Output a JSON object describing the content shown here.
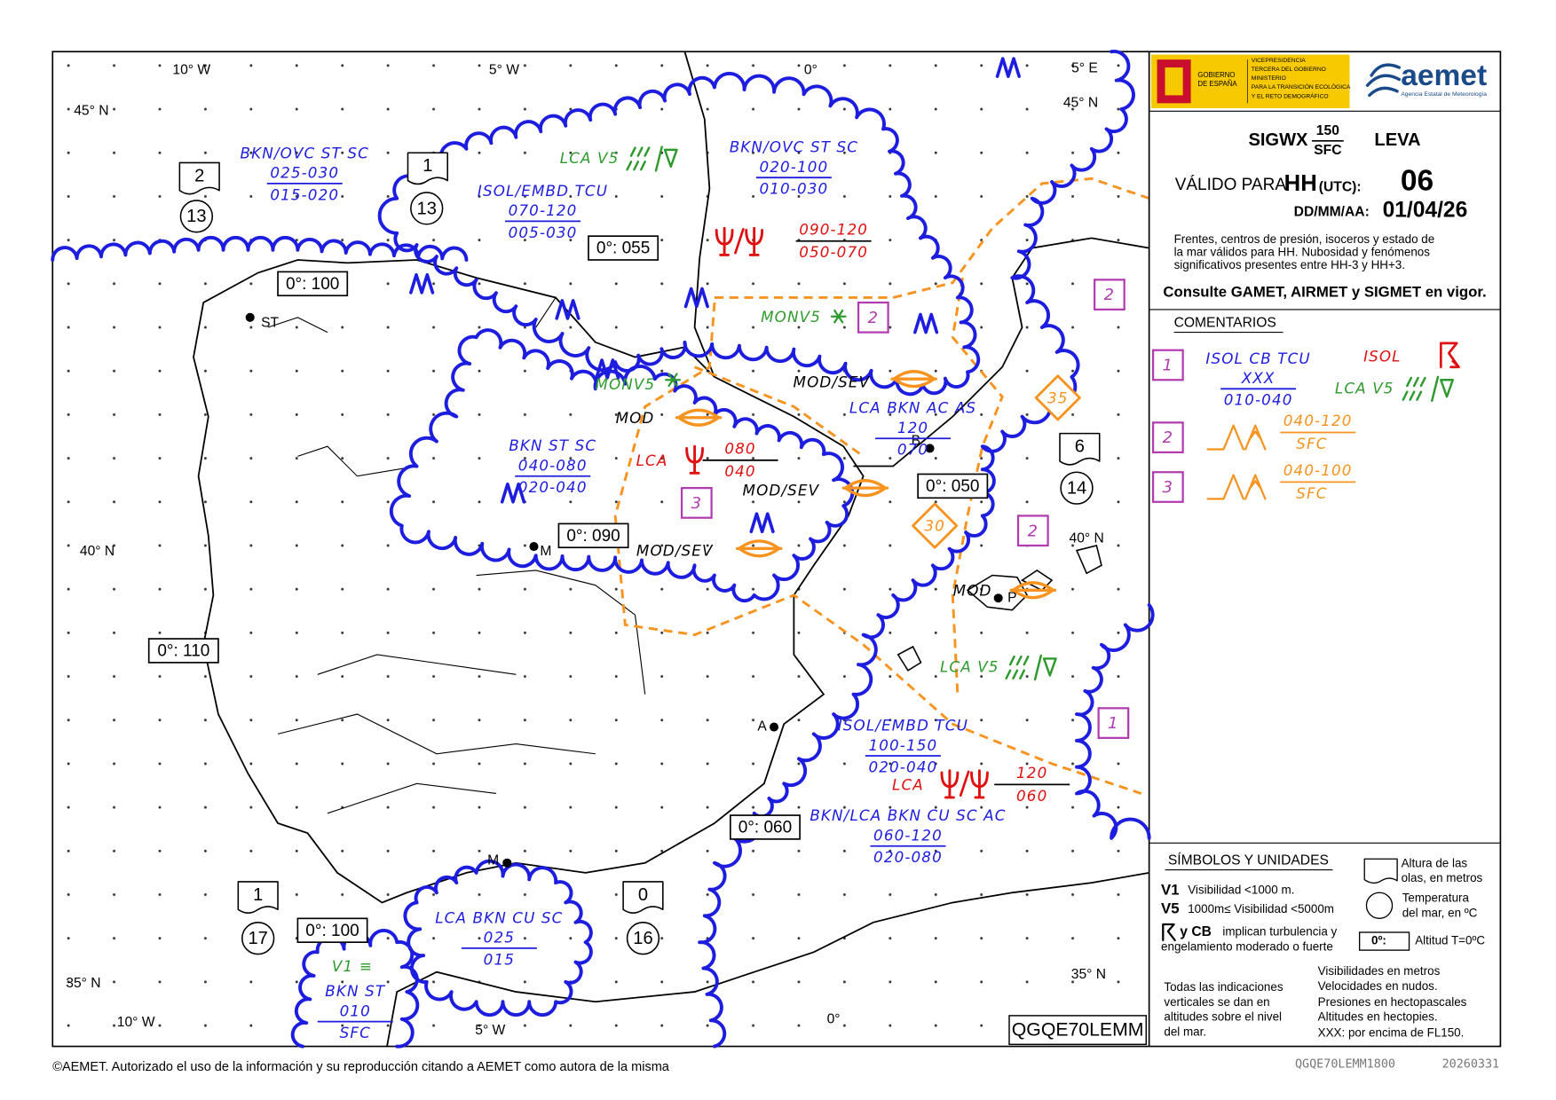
{
  "header": {
    "product": "SIGWX",
    "level_top": "150",
    "level_bottom": "SFC",
    "region": "LEVA",
    "valid_label": "VÁLIDO PARA",
    "hh": "HH",
    "utc": "(UTC):",
    "hh_value": "06",
    "date_label": "DD/MM/AA:",
    "date": "01/04/26",
    "description": [
      "Frentes, centros de presión, isoceros y estado de",
      "la mar válidos para HH. Nubosidad y fenómenos",
      "significativos presentes entre HH-3 y HH+3."
    ],
    "notice": "Consulte GAMET, AIRMET y SIGMET en vigor."
  },
  "logos": {
    "gov": [
      "GOBIERNO",
      "DE ESPAÑA"
    ],
    "ministry": [
      "VICEPRESIDENCIA",
      "TERCERA DEL GOBIERNO",
      "MINISTERIO",
      "PARA LA TRANSICIÓN ECOLÓGICA",
      "Y EL RETO DEMOGRÁFICO"
    ],
    "aemet": "aemet",
    "aemet_sub": "Agencia Estatal de Meteorología"
  },
  "map": {
    "coords": [
      "10° W",
      "5° W",
      "0°",
      "5° E",
      "45° N",
      "45° N",
      "40° N",
      "40° N",
      "35° N",
      "35° N",
      "10° W",
      "5° W",
      "0°"
    ],
    "cities": [
      "ST",
      "B",
      "M",
      "P",
      "A",
      "M"
    ],
    "cloud_groups": [
      {
        "lines": [
          "BKN/OVC ST SC",
          "025-030",
          "015-020"
        ]
      },
      {
        "lines": [
          "ISOL/EMBD TCU",
          "070-120",
          "005-030"
        ]
      },
      {
        "lines": [
          "BKN/OVC ST SC",
          "020-100",
          "010-030"
        ]
      },
      {
        "lines": [
          "BKN ST SC",
          "040-080",
          "020-040"
        ]
      },
      {
        "lines": [
          "LCA BKN AC AS",
          "120",
          "070"
        ]
      },
      {
        "lines": [
          "ISOL/EMBD TCU",
          "100-150",
          "020-040"
        ]
      },
      {
        "lines": [
          "BKN/LCA BKN CU SC AC",
          "060-120",
          "020-080"
        ]
      },
      {
        "lines": [
          "LCA BKN CU SC",
          "025",
          "015"
        ]
      },
      {
        "lines": [
          "BKN ST",
          "010",
          "SFC"
        ]
      }
    ],
    "red_groups": [
      {
        "lines": [
          "090-120",
          "050-070"
        ]
      },
      {
        "lines": [
          "080",
          "040"
        ]
      },
      {
        "lines": [
          "120",
          "060"
        ]
      }
    ],
    "red_labels": [
      "LCA",
      "LCA"
    ],
    "green_labels": [
      "LCA V5",
      "MONV5",
      "MONV5",
      "LCA V5",
      "V1 ≡"
    ],
    "black_labels": [
      "MOD/SEV",
      "MOD",
      "MOD/SEV",
      "MOD/SEV",
      "MOD"
    ],
    "freezing_levels": [
      "0°: 055",
      "0°: 100",
      "0°: 090",
      "0°: 050",
      "0°: 110",
      "0°: 060",
      "0°: 100"
    ],
    "sea_states": [
      {
        "wave": "2",
        "temp": "13"
      },
      {
        "wave": "1",
        "temp": "13"
      },
      {
        "wave": "6",
        "temp": "14"
      },
      {
        "wave": "1",
        "temp": "17"
      },
      {
        "wave": "0",
        "temp": "16"
      }
    ],
    "area_boxes": [
      "2",
      "3",
      "2",
      "2",
      "1"
    ],
    "diamonds": [
      "35",
      "30"
    ],
    "bulletin": "QGQE70LEMM"
  },
  "comments": {
    "title": "COMENTARIOS",
    "items": [
      {
        "box": "1",
        "cloud": [
          "ISOL CB TCU",
          "XXX",
          "010-040"
        ],
        "red": "ISOL",
        "green": "LCA V5"
      },
      {
        "box": "2",
        "levels": [
          "040-120",
          "SFC"
        ]
      },
      {
        "box": "3",
        "levels": [
          "040-100",
          "SFC"
        ]
      }
    ]
  },
  "legend": {
    "title": "SÍMBOLOS Y UNIDADES",
    "v1": "V1",
    "v1_text": "Visibilidad <1000 m.",
    "v5": "V5",
    "v5_text": "1000m≤ Visibilidad <5000m",
    "cb": "y CB",
    "cb_text": [
      "implican turbulencia y",
      "engelamiento moderado o fuerte"
    ],
    "wave_text": [
      "Altura de las",
      "olas, en metros"
    ],
    "temp_text": [
      "Temperatura",
      "del mar, en ºC"
    ],
    "freezing_box": "0º:",
    "freezing_text": "Altitud T=0ºC",
    "vertical_note": [
      "Todas las indicaciones",
      "verticales se dan en",
      "altitudes sobre el nivel",
      "del mar."
    ],
    "units": [
      "Visibilidades en metros",
      "Velocidades en nudos.",
      "Presiones en hectopascales",
      "Altitudes en hectopies.",
      "XXX: por encima de FL150."
    ]
  },
  "footer": {
    "copyright": "©AEMET. Autorizado el uso de la información y su reproducción citando a AEMET como autora de la misma",
    "code": "QGQE70LEMM1800",
    "date": "20260331"
  }
}
